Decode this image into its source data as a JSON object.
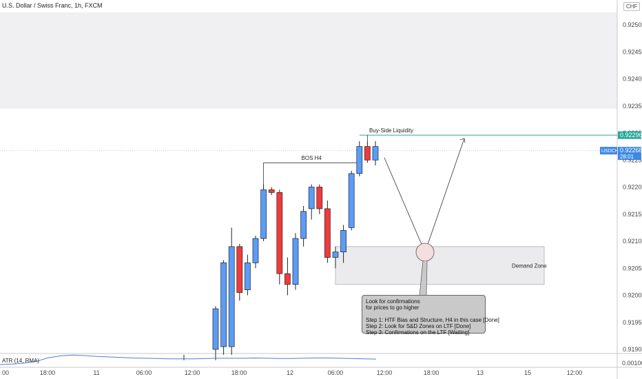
{
  "header": {
    "title": "U.S. Dollar / Swiss Franc, 1h, FXCM",
    "currency": "CHF"
  },
  "indicator": {
    "label": "ATR (14, RMA)",
    "last_value": "0.00100"
  },
  "price_tags": {
    "liquidity_level": "0.92296",
    "symbol": "USDCHF",
    "current_price": "0.92268",
    "countdown": "28:01"
  },
  "annotations": {
    "bos": "BOS H4",
    "liquidity": "Buy-Side Liquidity",
    "demand_zone": "Demand Zone",
    "note": [
      "Look for confirmations",
      "for prices to go higher",
      "",
      "Step 1: HTF Bias and Structure, H4 in this case [Done]",
      "Step 2: Look for S&D Zones on LTF [Done]",
      "Step 3: Confirmations on the LTF [Waiting]"
    ]
  },
  "colors": {
    "up": "#5b9cf6",
    "down": "#ef3b3b",
    "liquidity_line": "#26a69a",
    "atr_line": "#4a7fd6",
    "price_tag": "#3d8ae0"
  },
  "chart_data": {
    "type": "candlestick",
    "title": "U.S. Dollar / Swiss Franc, 1h, FXCM",
    "y_axis": {
      "ticks": [
        0.925,
        0.9245,
        0.924,
        0.9235,
        0.923,
        0.9225,
        0.922,
        0.9215,
        0.921,
        0.9205,
        0.92,
        0.9195,
        0.919
      ],
      "tick_labels": [
        "0.92500",
        "0.92450",
        "0.92400",
        "0.92350",
        "0.92300",
        "0.92250",
        "0.92200",
        "0.92150",
        "0.92100",
        "0.92050",
        "0.92000",
        "0.91950",
        "0.91900"
      ],
      "range": [
        0.91885,
        0.9256
      ]
    },
    "x_axis": {
      "tick_labels": [
        "00",
        "18:00",
        "11",
        "06:00",
        "12:00",
        "18:00",
        "12",
        "06:00",
        "12:00",
        "18:00",
        "13",
        "15",
        "12:00"
      ]
    },
    "candles": [
      {
        "open": 0.919,
        "high": 0.9198,
        "low": 0.9188,
        "close": 0.91975
      },
      {
        "open": 0.91905,
        "high": 0.92065,
        "low": 0.9189,
        "close": 0.9206
      },
      {
        "open": 0.91905,
        "high": 0.92125,
        "low": 0.9189,
        "close": 0.9209
      },
      {
        "open": 0.9209,
        "high": 0.92095,
        "low": 0.9199,
        "close": 0.92005
      },
      {
        "open": 0.9201,
        "high": 0.92075,
        "low": 0.92,
        "close": 0.9206
      },
      {
        "open": 0.9206,
        "high": 0.9211,
        "low": 0.9205,
        "close": 0.92105
      },
      {
        "open": 0.92105,
        "high": 0.92205,
        "low": 0.921,
        "close": 0.92195
      },
      {
        "open": 0.92195,
        "high": 0.922,
        "low": 0.92185,
        "close": 0.9219
      },
      {
        "open": 0.9219,
        "high": 0.92195,
        "low": 0.9202,
        "close": 0.9204
      },
      {
        "open": 0.9204,
        "high": 0.9207,
        "low": 0.92,
        "close": 0.9202
      },
      {
        "open": 0.9202,
        "high": 0.92115,
        "low": 0.9201,
        "close": 0.92105
      },
      {
        "open": 0.92105,
        "high": 0.92165,
        "low": 0.9209,
        "close": 0.92155
      },
      {
        "open": 0.9216,
        "high": 0.92205,
        "low": 0.9214,
        "close": 0.922
      },
      {
        "open": 0.922,
        "high": 0.92205,
        "low": 0.9215,
        "close": 0.9216
      },
      {
        "open": 0.9216,
        "high": 0.92175,
        "low": 0.9206,
        "close": 0.9207
      },
      {
        "open": 0.9207,
        "high": 0.9209,
        "low": 0.9205,
        "close": 0.9208
      },
      {
        "open": 0.9208,
        "high": 0.9213,
        "low": 0.9206,
        "close": 0.9212
      },
      {
        "open": 0.92125,
        "high": 0.9223,
        "low": 0.9212,
        "close": 0.92225
      },
      {
        "open": 0.92225,
        "high": 0.92285,
        "low": 0.9222,
        "close": 0.92275
      },
      {
        "open": 0.92275,
        "high": 0.92285,
        "low": 0.92245,
        "close": 0.9225
      },
      {
        "open": 0.9225,
        "high": 0.92285,
        "low": 0.9224,
        "close": 0.92275
      }
    ],
    "levels": {
      "bos": 0.92245,
      "buy_side_liquidity": 0.92296,
      "current": 0.92268
    },
    "demand_zone": {
      "top": 0.9209,
      "bottom": 0.9202
    },
    "atr": {
      "name": "ATR (14, RMA)",
      "values": [
        0.0008,
        0.00082,
        0.00085,
        0.00092,
        0.00105,
        0.00112,
        0.00115,
        0.00113,
        0.0011,
        0.00108,
        0.00106,
        0.00104,
        0.00103,
        0.00102,
        0.00101,
        0.00101,
        0.00101,
        0.00102,
        0.00103,
        0.00103,
        0.00103,
        0.00104,
        0.00103,
        0.00102,
        0.00102,
        0.00103,
        0.00104,
        0.00104,
        0.00103,
        0.00102,
        0.00101,
        0.001
      ]
    }
  }
}
